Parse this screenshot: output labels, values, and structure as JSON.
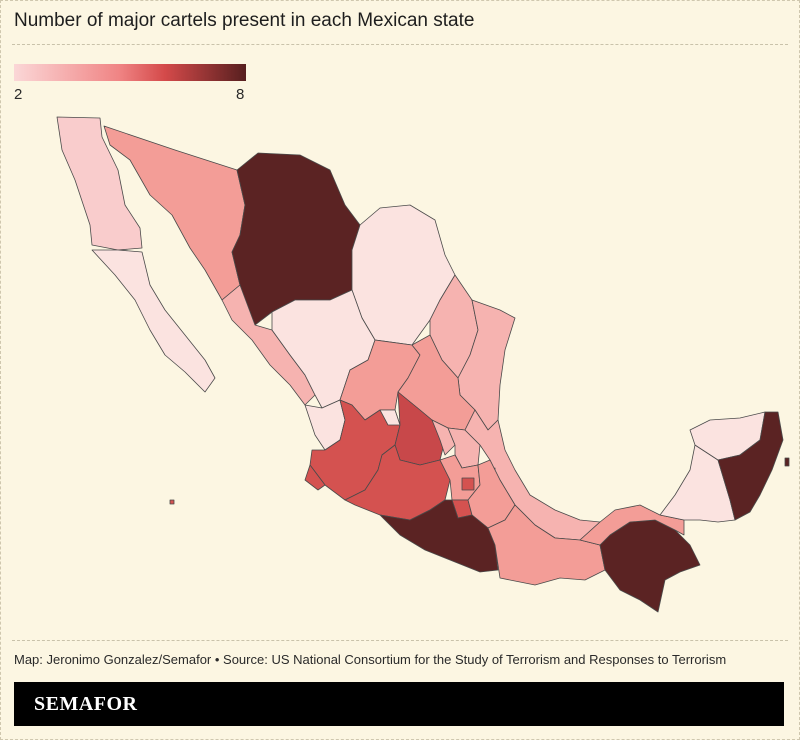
{
  "title": "Number of major cartels present in each Mexican state",
  "legend": {
    "min_label": "2",
    "max_label": "8",
    "min_value": 2,
    "max_value": 8,
    "colors": [
      "#fbd7d7",
      "#f08585",
      "#d44a4a",
      "#571f1f"
    ]
  },
  "source": "Map: Jeronimo Gonzalez/Semafor • Source: US National Consortium for the Study of Terrorism and Responses to Terrorism",
  "brand": "SEMAFOR",
  "colors": {
    "background": "#fcf6e2",
    "border": "#4a4a4a",
    "footer": "#000000"
  }
}
